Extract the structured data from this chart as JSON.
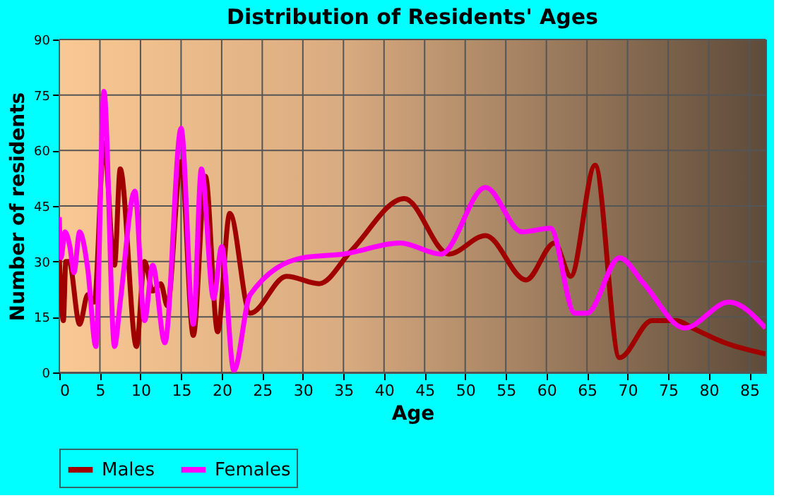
{
  "chart_data": {
    "type": "line",
    "title": "Distribution of Residents' Ages",
    "xlabel": "Age",
    "ylabel": "Number of residents",
    "xlim": [
      0,
      87
    ],
    "ylim": [
      0,
      90
    ],
    "xticks": [
      0,
      5,
      10,
      15,
      20,
      25,
      30,
      35,
      40,
      45,
      50,
      55,
      60,
      65,
      70,
      75,
      80,
      85
    ],
    "yticks": [
      0,
      15,
      30,
      45,
      60,
      75,
      90
    ],
    "grid": true,
    "legend": "bottom",
    "marker": "none",
    "line_style": "solid",
    "series": [
      {
        "name": "Males",
        "color": "#a00000",
        "x": [
          0,
          0.5,
          0.8,
          1.2,
          2.5,
          3.5,
          4.3,
          5.5,
          6.8,
          7.5,
          9.5,
          10.5,
          11.5,
          12.5,
          13.3,
          15,
          16.5,
          18,
          19.5,
          21,
          23.5,
          28,
          32,
          36,
          42.5,
          48,
          52.5,
          57.5,
          61,
          63,
          66,
          69,
          73,
          76,
          78,
          82,
          87
        ],
        "values": [
          31,
          14,
          30,
          30,
          13,
          21,
          19,
          62,
          29,
          55,
          7,
          30,
          22,
          24,
          18,
          57,
          10,
          53,
          11,
          43,
          16,
          26,
          24,
          33,
          47,
          32,
          37,
          25,
          35,
          26,
          56,
          4,
          14,
          14,
          12,
          8,
          5
        ]
      },
      {
        "name": "Females",
        "color": "#ff00ff",
        "x": [
          0,
          0.2,
          0.7,
          1.3,
          1.8,
          2.5,
          3.5,
          4.5,
          5.5,
          6.8,
          7.5,
          9.3,
          10.5,
          11.5,
          13,
          15,
          16.5,
          17.5,
          19,
          20,
          21.5,
          23.5,
          30,
          35,
          42,
          47,
          52.5,
          57,
          60.5,
          63.5,
          65,
          69,
          72,
          77,
          82.5,
          87
        ],
        "values": [
          42,
          31,
          38,
          34,
          27,
          38,
          28,
          7,
          76,
          7,
          19,
          49,
          14,
          29,
          8,
          66,
          13,
          55,
          20,
          34,
          0.5,
          21,
          31,
          32,
          35,
          32,
          50,
          38,
          39,
          16,
          16,
          31,
          24,
          12,
          19,
          12
        ]
      }
    ]
  }
}
